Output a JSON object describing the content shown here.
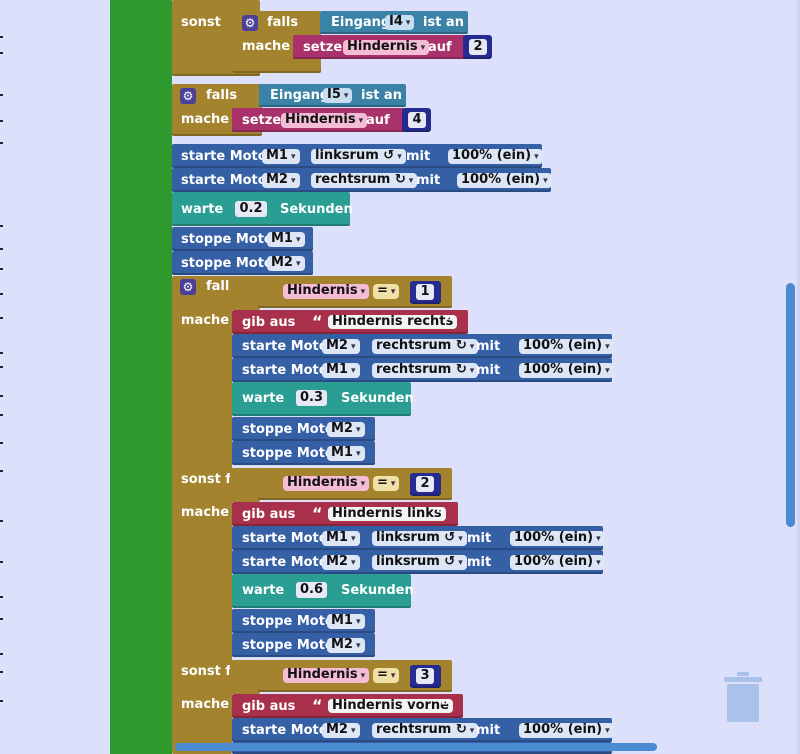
{
  "colors": {
    "workspace": "#dde0fb",
    "control": "#a3832e",
    "sensor": "#3a82a6",
    "variable": "#a9326b",
    "motor": "#3660a6",
    "wait": "#2a9e93",
    "output": "#a9304a",
    "start_bar": "#2e9a2e",
    "scrollbar": "#4a8bd2",
    "trash": "#a8c2ea"
  },
  "icons": {
    "gear": "gear-icon",
    "trash": "trash-icon"
  },
  "labels": {
    "sonst": "sonst",
    "falls": "falls",
    "mache": "mache",
    "sonst_falls": "sonst falls",
    "eingang": "Eingang",
    "ist_an": "ist an",
    "setze": "setze",
    "auf": "auf",
    "starte_motor": "starte Motor",
    "mit": "mit",
    "warte": "warte",
    "sekunden": "Sekunden",
    "stoppe_motor": "stoppe Motor",
    "gib_aus": "gib aus",
    "open_quote": "“",
    "close_quote": "”",
    "equals": "=",
    "arrow": "▾"
  },
  "values": {
    "input_i4": "I4",
    "input_i5": "I5",
    "var_hindernis": "Hindernis",
    "num_2": "2",
    "num_4": "4",
    "num_1": "1",
    "num_3": "3",
    "m1": "M1",
    "m2": "M2",
    "linksrum": "linksrum ↺",
    "rechtsrum": "rechtsrum ↻",
    "speed": "100% (ein)",
    "wait_02": "0.2",
    "wait_03": "0.3",
    "wait_06": "0.6",
    "msg_rechts": "Hindernis rechts",
    "msg_links": "Hindernis links",
    "msg_vorne": "Hindernis vorne"
  }
}
